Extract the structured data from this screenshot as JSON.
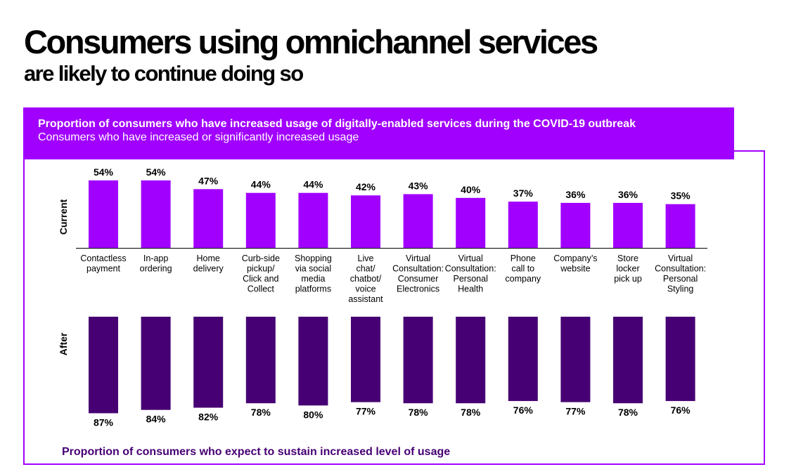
{
  "header": {
    "title": "Consumers using omnichannel services",
    "subtitle": "are likely to continue doing so"
  },
  "banner": {
    "title": "Proportion of consumers who have increased usage of digitally-enabled services during the COVID-19 outbreak",
    "subtitle": "Consumers who have increased or significantly increased usage"
  },
  "footer": {
    "note": "Proportion of consumers who expect to sustain increased level of usage"
  },
  "colors": {
    "current": "#a100ff",
    "after": "#460073",
    "frame": "#a100ff"
  },
  "chart_data": {
    "type": "bar",
    "title": "Proportion of consumers who have increased usage of digitally-enabled services during the COVID-19 outbreak",
    "categories": [
      [
        "Contactless",
        "payment"
      ],
      [
        "In-app",
        "ordering"
      ],
      [
        "Home",
        "delivery"
      ],
      [
        "Curb-side",
        "pickup/",
        "Click and",
        "Collect"
      ],
      [
        "Shopping",
        "via social",
        "media",
        "platforms"
      ],
      [
        "Live",
        "chat/",
        "chatbot/",
        "voice",
        "assistant"
      ],
      [
        "Virtual",
        "Consultation:",
        "Consumer",
        "Electronics"
      ],
      [
        "Virtual",
        "Consultation:",
        "Personal",
        "Health"
      ],
      [
        "Phone",
        "call to",
        "company"
      ],
      [
        "Company’s",
        "website"
      ],
      [
        "Store",
        "locker",
        "pick up"
      ],
      [
        "Virtual",
        "Consultation:",
        "Personal",
        "Styling"
      ]
    ],
    "series": [
      {
        "name": "Current",
        "direction": "up",
        "values": [
          54,
          54,
          47,
          44,
          44,
          42,
          43,
          40,
          37,
          36,
          36,
          35
        ],
        "labels": [
          "54%",
          "54%",
          "47%",
          "44%",
          "44%",
          "42%",
          "43%",
          "40%",
          "37%",
          "36%",
          "36%",
          "35%"
        ]
      },
      {
        "name": "After",
        "direction": "down",
        "values": [
          87,
          84,
          82,
          78,
          80,
          77,
          78,
          78,
          76,
          77,
          78,
          76
        ],
        "labels": [
          "87%",
          "84%",
          "82%",
          "78%",
          "80%",
          "77%",
          "78%",
          "78%",
          "76%",
          "77%",
          "78%",
          "76%"
        ]
      }
    ],
    "ylim": [
      0,
      100
    ],
    "grid": false,
    "legend": "none"
  }
}
